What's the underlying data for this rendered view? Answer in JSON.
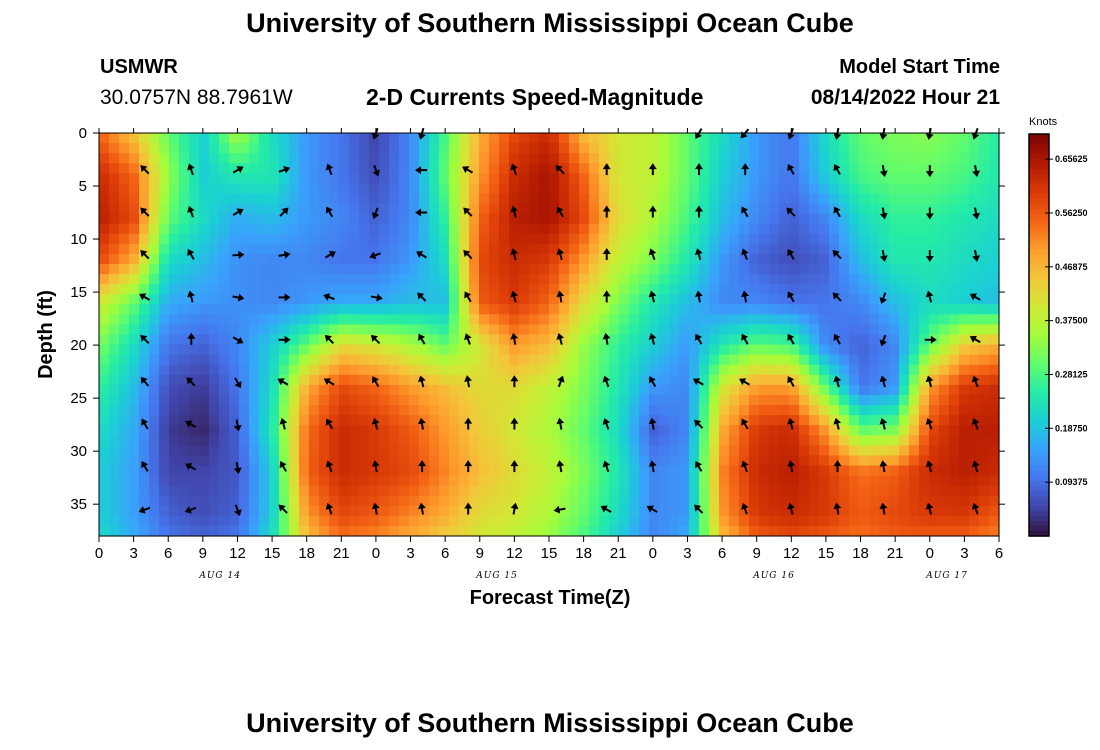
{
  "header": {
    "title": "University of Southern Mississippi Ocean Cube",
    "station_name": "USMWR",
    "station_coords": "30.0757N  88.7961W",
    "plot_title": "2-D Currents Speed-Magnitude",
    "model_start_label": "Model Start Time",
    "model_start_value": "08/14/2022 Hour 21"
  },
  "footer": {
    "title": "University of Southern Mississippi Ocean Cube"
  },
  "chart_data": {
    "type": "heatmap",
    "title": "2-D Currents Speed-Magnitude",
    "xlabel": "Forecast Time(Z)",
    "ylabel": "Depth (ft)",
    "x_tick_labels": [
      "0",
      "3",
      "6",
      "9",
      "12",
      "15",
      "18",
      "21",
      "0",
      "3",
      "6",
      "9",
      "12",
      "15",
      "18",
      "21",
      "0",
      "3",
      "6",
      "9",
      "12",
      "15",
      "18",
      "21",
      "0",
      "3",
      "6"
    ],
    "date_labels": [
      {
        "label": "AUG 14",
        "hour": 10.5
      },
      {
        "label": "AUG 15",
        "hour": 34.5
      },
      {
        "label": "AUG 16",
        "hour": 58.5
      },
      {
        "label": "AUG 17",
        "hour": 73.5
      }
    ],
    "x_range_hours": [
      0,
      78
    ],
    "y_tick_labels": [
      "0",
      "5",
      "10",
      "15",
      "20",
      "25",
      "30",
      "35"
    ],
    "y_tick_values": [
      0,
      5,
      10,
      15,
      20,
      25,
      30,
      35
    ],
    "y_range_ft": [
      0,
      38
    ],
    "colorbar": {
      "label": "Knots",
      "tick_labels": [
        "0.65625",
        "0.56250",
        "0.46875",
        "0.37500",
        "0.28125",
        "0.18750",
        "0.09375"
      ],
      "range": [
        0,
        0.7
      ],
      "colors": [
        "#30123b",
        "#4145ab",
        "#4675ed",
        "#39a2fc",
        "#1bcfd4",
        "#24eca6",
        "#61fc6c",
        "#a4fc3b",
        "#d1e834",
        "#f3c63a",
        "#fe9b2d",
        "#f36315",
        "#d93806",
        "#b11901",
        "#7a0402"
      ]
    },
    "speed_grid": {
      "units": "knots",
      "hours": [
        0,
        3,
        6,
        9,
        12,
        15,
        18,
        21,
        24,
        27,
        30,
        33,
        36,
        39,
        42,
        45,
        48,
        51,
        54,
        57,
        60,
        63,
        66,
        69,
        72,
        75,
        78
      ],
      "depths_ft": [
        0,
        4,
        8,
        12,
        16,
        20,
        24,
        28,
        32,
        36,
        38
      ],
      "values": [
        [
          0.55,
          0.45,
          0.3,
          0.2,
          0.36,
          0.22,
          0.14,
          0.1,
          0.05,
          0.12,
          0.28,
          0.48,
          0.58,
          0.62,
          0.46,
          0.4,
          0.38,
          0.3,
          0.22,
          0.14,
          0.1,
          0.22,
          0.3,
          0.32,
          0.33,
          0.3,
          0.25
        ],
        [
          0.62,
          0.55,
          0.34,
          0.2,
          0.24,
          0.24,
          0.14,
          0.1,
          0.06,
          0.12,
          0.3,
          0.5,
          0.62,
          0.66,
          0.55,
          0.4,
          0.38,
          0.3,
          0.2,
          0.14,
          0.1,
          0.2,
          0.28,
          0.3,
          0.3,
          0.28,
          0.24
        ],
        [
          0.64,
          0.58,
          0.3,
          0.22,
          0.16,
          0.18,
          0.14,
          0.12,
          0.08,
          0.12,
          0.26,
          0.55,
          0.64,
          0.66,
          0.58,
          0.42,
          0.36,
          0.28,
          0.18,
          0.12,
          0.08,
          0.12,
          0.22,
          0.26,
          0.26,
          0.24,
          0.22
        ],
        [
          0.58,
          0.48,
          0.22,
          0.18,
          0.13,
          0.12,
          0.12,
          0.1,
          0.1,
          0.14,
          0.22,
          0.58,
          0.62,
          0.6,
          0.5,
          0.38,
          0.32,
          0.24,
          0.14,
          0.08,
          0.06,
          0.08,
          0.18,
          0.24,
          0.24,
          0.22,
          0.2
        ],
        [
          0.4,
          0.3,
          0.16,
          0.14,
          0.13,
          0.12,
          0.14,
          0.16,
          0.16,
          0.18,
          0.18,
          0.56,
          0.6,
          0.55,
          0.42,
          0.32,
          0.24,
          0.18,
          0.12,
          0.12,
          0.1,
          0.1,
          0.12,
          0.18,
          0.22,
          0.2,
          0.18
        ],
        [
          0.32,
          0.22,
          0.1,
          0.08,
          0.12,
          0.2,
          0.3,
          0.42,
          0.4,
          0.36,
          0.3,
          0.4,
          0.5,
          0.46,
          0.34,
          0.26,
          0.2,
          0.14,
          0.24,
          0.3,
          0.28,
          0.12,
          0.08,
          0.12,
          0.3,
          0.44,
          0.48
        ],
        [
          0.26,
          0.18,
          0.06,
          0.04,
          0.1,
          0.22,
          0.48,
          0.58,
          0.55,
          0.5,
          0.46,
          0.42,
          0.42,
          0.38,
          0.32,
          0.24,
          0.14,
          0.12,
          0.4,
          0.5,
          0.5,
          0.3,
          0.1,
          0.14,
          0.5,
          0.6,
          0.62
        ],
        [
          0.22,
          0.16,
          0.04,
          0.02,
          0.08,
          0.24,
          0.54,
          0.62,
          0.6,
          0.56,
          0.5,
          0.44,
          0.4,
          0.36,
          0.3,
          0.22,
          0.08,
          0.12,
          0.48,
          0.6,
          0.62,
          0.5,
          0.3,
          0.32,
          0.58,
          0.64,
          0.64
        ],
        [
          0.2,
          0.15,
          0.05,
          0.05,
          0.07,
          0.2,
          0.55,
          0.62,
          0.6,
          0.58,
          0.52,
          0.46,
          0.42,
          0.38,
          0.32,
          0.24,
          0.12,
          0.14,
          0.52,
          0.62,
          0.64,
          0.6,
          0.54,
          0.56,
          0.62,
          0.64,
          0.62
        ],
        [
          0.2,
          0.15,
          0.08,
          0.06,
          0.08,
          0.2,
          0.5,
          0.58,
          0.56,
          0.52,
          0.48,
          0.42,
          0.4,
          0.36,
          0.3,
          0.22,
          0.12,
          0.14,
          0.5,
          0.6,
          0.62,
          0.6,
          0.56,
          0.58,
          0.6,
          0.6,
          0.56
        ],
        [
          0.22,
          0.16,
          0.1,
          0.08,
          0.1,
          0.22,
          0.46,
          0.54,
          0.52,
          0.48,
          0.44,
          0.4,
          0.38,
          0.34,
          0.28,
          0.2,
          0.12,
          0.16,
          0.46,
          0.56,
          0.58,
          0.56,
          0.54,
          0.56,
          0.56,
          0.56,
          0.52
        ]
      ]
    },
    "vector_grid": {
      "units": "direction angle degrees (0 = up, clockwise)",
      "times_hours": [
        4,
        8,
        12,
        16,
        20,
        24,
        28,
        32,
        36,
        40,
        44,
        48,
        52,
        56,
        60,
        64,
        68,
        72,
        76
      ],
      "depths_ft": [
        0,
        3.5,
        7.5,
        11.5,
        15.5,
        19.5,
        23.5,
        27.5,
        31.5,
        35.5
      ],
      "angles": [
        [
          null,
          null,
          null,
          null,
          null,
          200,
          195,
          null,
          null,
          null,
          null,
          null,
          210,
          220,
          200,
          190,
          190,
          190,
          200
        ],
        [
          -45,
          -20,
          60,
          70,
          -20,
          160,
          -90,
          -60,
          -20,
          -45,
          0,
          0,
          0,
          0,
          -30,
          -30,
          170,
          180,
          170
        ],
        [
          -45,
          -20,
          60,
          45,
          -30,
          200,
          -90,
          -45,
          -15,
          -30,
          0,
          0,
          0,
          -30,
          -45,
          -30,
          170,
          180,
          170
        ],
        [
          -45,
          -30,
          85,
          80,
          60,
          -110,
          -60,
          -45,
          -15,
          -15,
          0,
          -20,
          -15,
          -20,
          -30,
          -45,
          170,
          180,
          170
        ],
        [
          -60,
          -15,
          100,
          90,
          -70,
          100,
          -45,
          -30,
          -15,
          -10,
          0,
          -15,
          -10,
          -10,
          -30,
          -45,
          200,
          -15,
          -60
        ],
        [
          -45,
          0,
          120,
          90,
          -45,
          -45,
          -30,
          -20,
          -10,
          -15,
          -10,
          -15,
          -30,
          -30,
          -30,
          -30,
          200,
          90,
          -60
        ],
        [
          -40,
          -45,
          150,
          -60,
          -60,
          -30,
          -15,
          -10,
          0,
          20,
          -20,
          -30,
          -60,
          -60,
          -30,
          -15,
          -15,
          -15,
          -20
        ],
        [
          -30,
          -60,
          170,
          -15,
          -30,
          -15,
          -10,
          0,
          0,
          -10,
          -20,
          -10,
          -45,
          -30,
          -15,
          -15,
          -15,
          -20,
          -20
        ],
        [
          -30,
          -60,
          170,
          -30,
          -20,
          -10,
          0,
          0,
          0,
          -10,
          -20,
          -10,
          -30,
          -20,
          -10,
          0,
          -10,
          -15,
          -15
        ],
        [
          -110,
          -110,
          160,
          -45,
          -20,
          -10,
          -10,
          0,
          10,
          -100,
          -60,
          -60,
          -45,
          -20,
          -15,
          -10,
          -10,
          -15,
          -20
        ]
      ]
    }
  }
}
